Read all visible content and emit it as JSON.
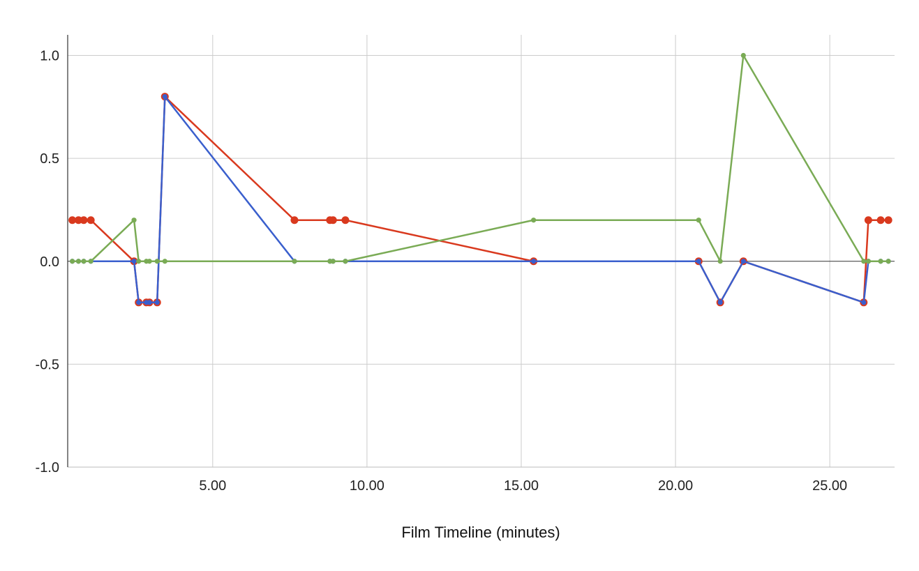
{
  "chart_data": {
    "type": "line",
    "title": "",
    "xlabel": "Film Timeline (minutes)",
    "ylabel": "",
    "xlim": [
      0.3,
      27.1
    ],
    "ylim": [
      -1.0,
      1.1
    ],
    "x_ticks": [
      "5.00",
      "10.00",
      "15.00",
      "20.00",
      "25.00"
    ],
    "x_tick_values": [
      5,
      10,
      15,
      20,
      25
    ],
    "y_ticks": [
      "1.0",
      "0.5",
      "0.0",
      "-0.5",
      "-1.0"
    ],
    "y_tick_values": [
      1.0,
      0.5,
      0.0,
      -0.5,
      -1.0
    ],
    "grid": true,
    "legend": "none",
    "series": [
      {
        "color": "#d9391e",
        "points": [
          [
            0.45,
            0.2
          ],
          [
            0.65,
            0.2
          ],
          [
            0.82,
            0.2
          ],
          [
            1.05,
            0.2
          ],
          [
            2.45,
            0
          ],
          [
            2.6,
            -0.2
          ],
          [
            2.85,
            -0.2
          ],
          [
            2.95,
            -0.2
          ],
          [
            3.2,
            -0.2
          ],
          [
            3.45,
            0.8
          ],
          [
            7.65,
            0.2
          ],
          [
            8.8,
            0.2
          ],
          [
            8.9,
            0.2
          ],
          [
            9.3,
            0.2
          ],
          [
            15.4,
            0
          ],
          [
            20.75,
            0
          ],
          [
            21.45,
            -0.2
          ],
          [
            22.2,
            0
          ],
          [
            26.1,
            -0.2
          ],
          [
            26.25,
            0.2
          ],
          [
            26.65,
            0.2
          ],
          [
            26.9,
            0.2
          ]
        ]
      },
      {
        "color": "#3a5fcd",
        "points": [
          [
            0.45,
            0
          ],
          [
            0.65,
            0
          ],
          [
            0.82,
            0
          ],
          [
            1.05,
            0
          ],
          [
            2.45,
            0
          ],
          [
            2.6,
            -0.2
          ],
          [
            2.85,
            -0.2
          ],
          [
            2.95,
            -0.2
          ],
          [
            3.2,
            -0.2
          ],
          [
            3.45,
            0.8
          ],
          [
            7.65,
            0
          ],
          [
            8.8,
            0
          ],
          [
            8.9,
            0
          ],
          [
            9.3,
            0
          ],
          [
            15.4,
            0
          ],
          [
            20.75,
            0
          ],
          [
            21.45,
            -0.2
          ],
          [
            22.2,
            0
          ],
          [
            26.1,
            -0.2
          ],
          [
            26.25,
            0
          ],
          [
            26.65,
            0
          ],
          [
            26.9,
            0
          ]
        ]
      },
      {
        "color": "#7aab55",
        "points": [
          [
            0.45,
            0
          ],
          [
            0.65,
            0
          ],
          [
            0.82,
            0
          ],
          [
            1.05,
            0
          ],
          [
            2.45,
            0.2
          ],
          [
            2.6,
            0
          ],
          [
            2.85,
            0
          ],
          [
            2.95,
            0
          ],
          [
            3.2,
            0
          ],
          [
            3.45,
            0
          ],
          [
            7.65,
            0
          ],
          [
            8.8,
            0
          ],
          [
            8.9,
            0
          ],
          [
            9.3,
            0
          ],
          [
            15.4,
            0.2
          ],
          [
            20.75,
            0.2
          ],
          [
            21.45,
            0
          ],
          [
            22.2,
            1.0
          ],
          [
            26.1,
            0
          ],
          [
            26.25,
            0
          ],
          [
            26.65,
            0
          ],
          [
            26.9,
            0
          ]
        ]
      }
    ]
  }
}
